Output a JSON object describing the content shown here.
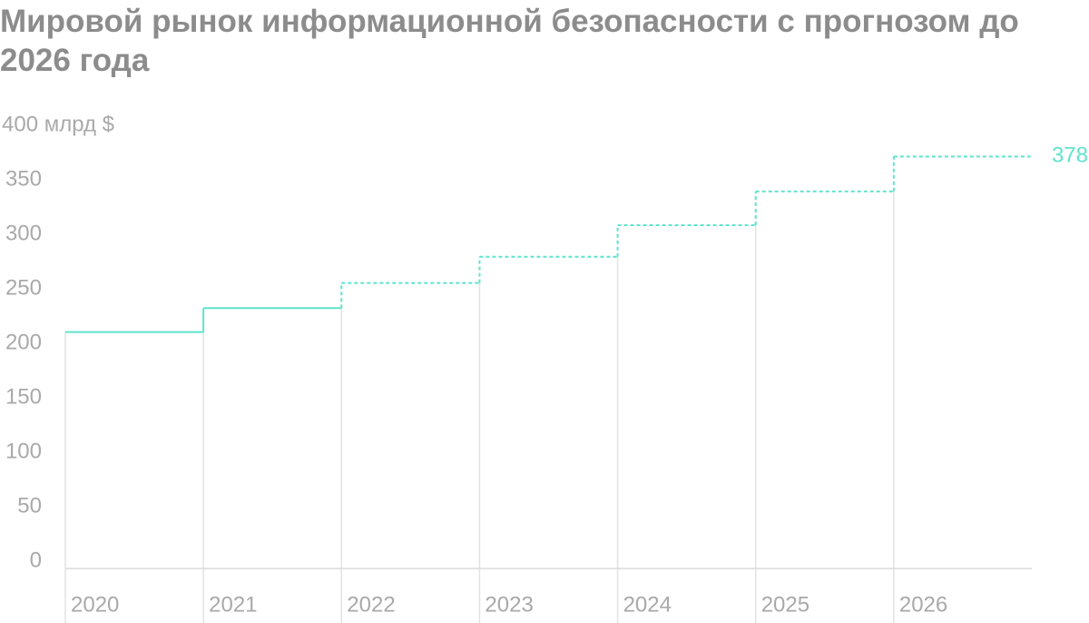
{
  "chart_data": {
    "type": "step",
    "title": "Мировой рынок информационной безопасности с прогнозом до 2026 года",
    "categories": [
      "2020",
      "2021",
      "2022",
      "2023",
      "2024",
      "2025",
      "2026"
    ],
    "series": [
      {
        "color": "#5fe3cc",
        "style": "solid",
        "values": [
          217,
          239,
          null,
          null,
          null,
          null,
          null
        ]
      },
      {
        "color": "#5fe3cc",
        "style": "dashed",
        "values": [
          null,
          null,
          262,
          286,
          315,
          346,
          378
        ]
      }
    ],
    "ylim": [
      0,
      400
    ],
    "yticks": [
      0,
      50,
      100,
      150,
      200,
      250,
      300,
      350,
      {
        "value": 400,
        "label": "400 млрд $"
      }
    ]
  }
}
